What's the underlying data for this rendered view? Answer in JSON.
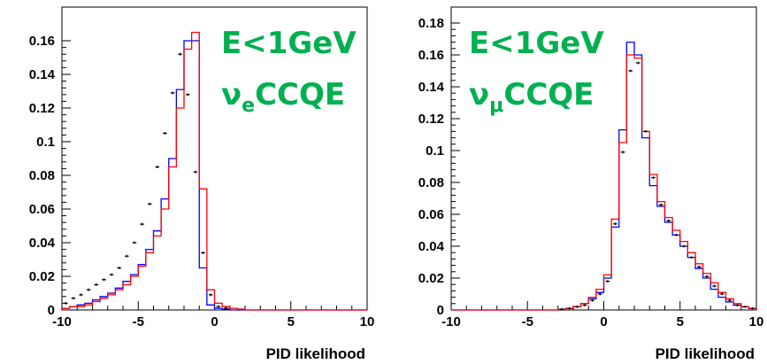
{
  "chart_data": [
    {
      "type": "histogram",
      "xlabel": "PID likelihood",
      "xlim": [
        -10,
        10
      ],
      "ylim": [
        0,
        0.18
      ],
      "x_ticks": [
        -10,
        -5,
        0,
        5,
        10
      ],
      "y_ticks": [
        0,
        0.02,
        0.04,
        0.06,
        0.08,
        0.1,
        0.12,
        0.14,
        0.16
      ],
      "y_tick_labels": [
        "0",
        "0.02",
        "0.04",
        "0.06",
        "0.08",
        "0.1",
        "0.12",
        "0.14",
        "0.16"
      ],
      "annotation": {
        "line1": "E<1GeV",
        "nu": "ν",
        "sub": "e",
        "rest": "CCQE"
      },
      "bin_edges": [
        -10,
        -9.5,
        -9,
        -8.5,
        -8,
        -7.5,
        -7,
        -6.5,
        -6,
        -5.5,
        -5,
        -4.5,
        -4,
        -3.5,
        -3,
        -2.5,
        -2,
        -1.5,
        -1,
        -0.5,
        0,
        0.5,
        1,
        1.5,
        2,
        2.5,
        3,
        3.5,
        4,
        4.5,
        5,
        5.5,
        6,
        6.5,
        7,
        7.5,
        8,
        8.5,
        9,
        9.5,
        10
      ],
      "series": [
        {
          "color": "#0000ff",
          "values": [
            0.001,
            0.002,
            0.003,
            0.004,
            0.006,
            0.008,
            0.01,
            0.013,
            0.017,
            0.021,
            0.027,
            0.036,
            0.047,
            0.066,
            0.09,
            0.131,
            0.16,
            0.16,
            0.025,
            0.003,
            0.001,
            0.0005,
            0,
            0,
            0,
            0,
            0,
            0,
            0,
            0,
            0,
            0,
            0,
            0,
            0,
            0,
            0,
            0,
            0,
            0
          ]
        },
        {
          "color": "#ff0000",
          "values": [
            0.001,
            0.002,
            0.002,
            0.003,
            0.005,
            0.007,
            0.009,
            0.012,
            0.015,
            0.02,
            0.026,
            0.034,
            0.044,
            0.06,
            0.085,
            0.12,
            0.155,
            0.165,
            0.072,
            0.012,
            0.004,
            0.002,
            0.001,
            0.0005,
            0,
            0,
            0,
            0,
            0,
            0,
            0,
            0,
            0,
            0,
            0,
            0,
            0,
            0,
            0,
            0
          ]
        },
        {
          "color": "#000000",
          "style": "points",
          "values": [
            0.004,
            0.007,
            0.009,
            0.012,
            0.015,
            0.018,
            0.021,
            0.025,
            0.032,
            0.04,
            0.051,
            0.063,
            0.085,
            0.105,
            0.129,
            0.152,
            0.128,
            0.082,
            0.034,
            0.009,
            0.002,
            0.001,
            0,
            0,
            0,
            0,
            0,
            0,
            0,
            0,
            0,
            0,
            0,
            0,
            0,
            0,
            0,
            0,
            0,
            0
          ]
        }
      ]
    },
    {
      "type": "histogram",
      "xlabel": "PID likelihood",
      "xlim": [
        -10,
        10
      ],
      "ylim": [
        0,
        0.19
      ],
      "x_ticks": [
        -10,
        -5,
        0,
        5,
        10
      ],
      "y_ticks": [
        0,
        0.02,
        0.04,
        0.06,
        0.08,
        0.1,
        0.12,
        0.14,
        0.16,
        0.18
      ],
      "y_tick_labels": [
        "0",
        "0.02",
        "0.04",
        "0.06",
        "0.08",
        "0.1",
        "0.12",
        "0.14",
        "0.16",
        "0.18"
      ],
      "annotation": {
        "line1": "E<1GeV",
        "nu": "ν",
        "sub": "μ",
        "rest": "CCQE"
      },
      "bin_edges": [
        -10,
        -9.5,
        -9,
        -8.5,
        -8,
        -7.5,
        -7,
        -6.5,
        -6,
        -5.5,
        -5,
        -4.5,
        -4,
        -3.5,
        -3,
        -2.5,
        -2,
        -1.5,
        -1,
        -0.5,
        0,
        0.5,
        1,
        1.5,
        2,
        2.5,
        3,
        3.5,
        4,
        4.5,
        5,
        5.5,
        6,
        6.5,
        7,
        7.5,
        8,
        8.5,
        9,
        9.5,
        10
      ],
      "series": [
        {
          "color": "#0000ff",
          "values": [
            0,
            0,
            0,
            0,
            0,
            0,
            0,
            0,
            0,
            0,
            0,
            0,
            0,
            0,
            0.0005,
            0.001,
            0.002,
            0.004,
            0.007,
            0.011,
            0.02,
            0.052,
            0.113,
            0.168,
            0.16,
            0.108,
            0.078,
            0.065,
            0.055,
            0.047,
            0.04,
            0.033,
            0.026,
            0.02,
            0.013,
            0.008,
            0.005,
            0.003,
            0.002,
            0.001
          ]
        },
        {
          "color": "#ff0000",
          "values": [
            0,
            0,
            0,
            0,
            0,
            0,
            0,
            0,
            0,
            0,
            0,
            0,
            0,
            0,
            0.0005,
            0.001,
            0.002,
            0.004,
            0.008,
            0.013,
            0.022,
            0.057,
            0.105,
            0.16,
            0.158,
            0.112,
            0.085,
            0.068,
            0.058,
            0.05,
            0.043,
            0.036,
            0.029,
            0.023,
            0.017,
            0.011,
            0.007,
            0.004,
            0.002,
            0.001
          ]
        },
        {
          "color": "#000000",
          "style": "points",
          "values": [
            0,
            0,
            0,
            0,
            0,
            0,
            0,
            0,
            0,
            0,
            0,
            0,
            0,
            0,
            0.0005,
            0.001,
            0.002,
            0.003,
            0.006,
            0.01,
            0.018,
            0.054,
            0.099,
            0.15,
            0.155,
            0.112,
            0.083,
            0.066,
            0.056,
            0.047,
            0.04,
            0.033,
            0.027,
            0.021,
            0.015,
            0.01,
            0.006,
            0.003,
            0.002,
            0.001
          ]
        }
      ]
    }
  ]
}
